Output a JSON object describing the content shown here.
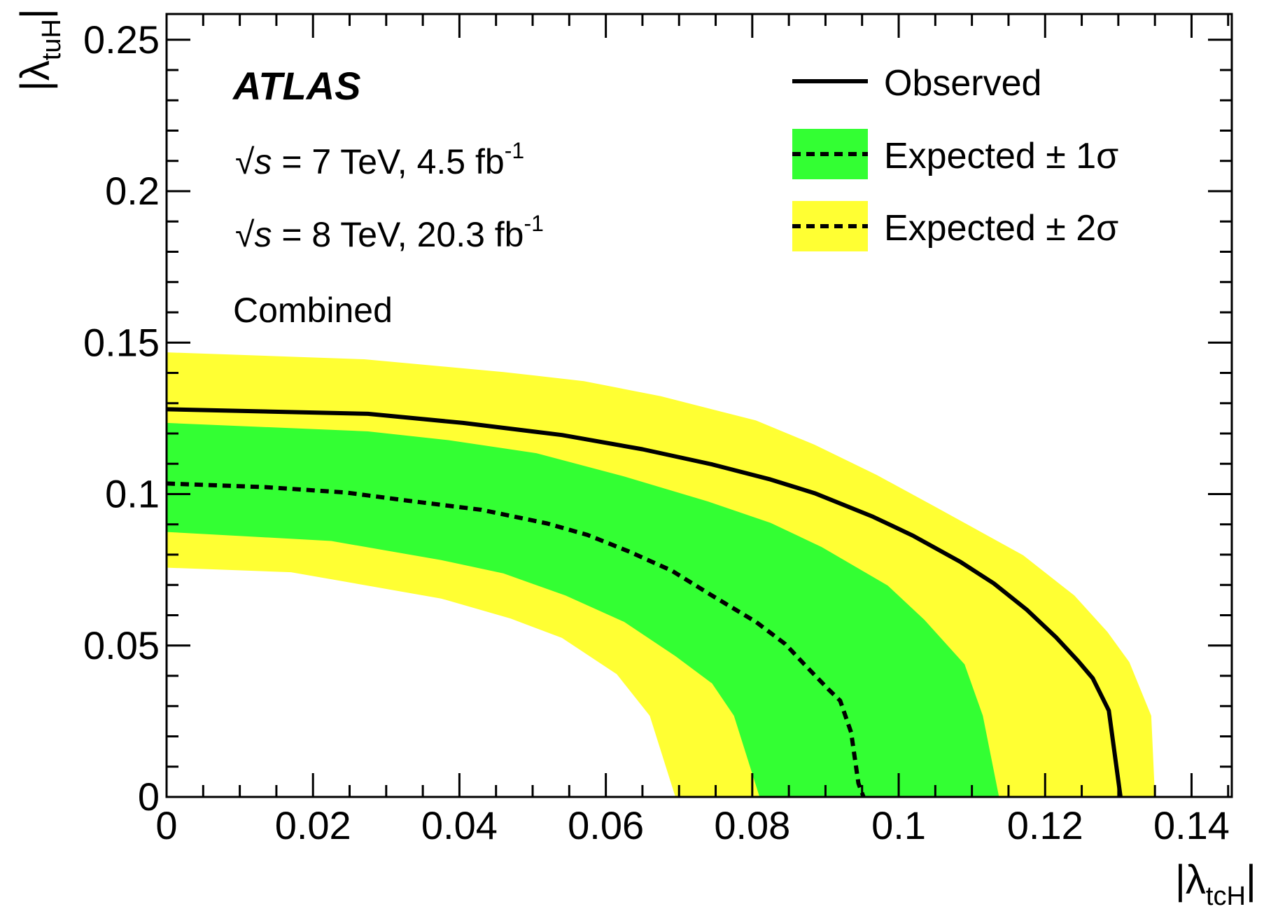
{
  "chart_data": {
    "type": "area",
    "title": "",
    "xlabel": {
      "main": "|λ",
      "sub": "tcH",
      "close": "|"
    },
    "ylabel": {
      "main": "|λ",
      "sub": "tuH",
      "close": "|"
    },
    "xlim": [
      0,
      0.1455
    ],
    "ylim": [
      0,
      0.2585
    ],
    "x_ticks": [
      0,
      0.02,
      0.04,
      0.06,
      0.08,
      0.1,
      0.12,
      0.14
    ],
    "x_tick_labels": [
      "0",
      "0.02",
      "0.04",
      "0.06",
      "0.08",
      "0.1",
      "0.12",
      "0.14"
    ],
    "x_minor_step": 0.005,
    "y_ticks": [
      0,
      0.05,
      0.1,
      0.15,
      0.2,
      0.25
    ],
    "y_tick_labels": [
      "0",
      "0.05",
      "0.1",
      "0.15",
      "0.2",
      "0.25"
    ],
    "y_minor_step": 0.01,
    "grid": false,
    "legend_position": "top-right",
    "series": [
      {
        "name": "Observed",
        "style": "solid",
        "points": [
          [
            0,
            0.128
          ],
          [
            0.0275,
            0.1265
          ],
          [
            0.0405,
            0.1235
          ],
          [
            0.054,
            0.1195
          ],
          [
            0.065,
            0.1148
          ],
          [
            0.0745,
            0.1098
          ],
          [
            0.0825,
            0.1048
          ],
          [
            0.0885,
            0.1003
          ],
          [
            0.0965,
            0.0925
          ],
          [
            0.102,
            0.0862
          ],
          [
            0.1085,
            0.0775
          ],
          [
            0.113,
            0.0705
          ],
          [
            0.1175,
            0.0618
          ],
          [
            0.1215,
            0.0527
          ],
          [
            0.1245,
            0.0449
          ],
          [
            0.1265,
            0.0392
          ],
          [
            0.1287,
            0.0285
          ],
          [
            0.1303,
            0
          ]
        ]
      },
      {
        "name": "Expected",
        "style": "dashed",
        "points": [
          [
            0,
            0.1035
          ],
          [
            0.0135,
            0.1023
          ],
          [
            0.0245,
            0.1005
          ],
          [
            0.033,
            0.0978
          ],
          [
            0.043,
            0.0948
          ],
          [
            0.052,
            0.0903
          ],
          [
            0.0575,
            0.0865
          ],
          [
            0.063,
            0.0812
          ],
          [
            0.069,
            0.0747
          ],
          [
            0.0745,
            0.0665
          ],
          [
            0.0805,
            0.0578
          ],
          [
            0.0845,
            0.0505
          ],
          [
            0.0875,
            0.0428
          ],
          [
            0.0905,
            0.0353
          ],
          [
            0.092,
            0.0318
          ],
          [
            0.0935,
            0.0213
          ],
          [
            0.0945,
            0.0045
          ],
          [
            0.0952,
            0
          ]
        ]
      }
    ],
    "bands": [
      {
        "name": "Expected ± 2σ",
        "color": "#ffff33",
        "upper": [
          [
            0,
            0.1468
          ],
          [
            0.027,
            0.1445
          ],
          [
            0.046,
            0.1403
          ],
          [
            0.057,
            0.1373
          ],
          [
            0.0675,
            0.1323
          ],
          [
            0.0805,
            0.1243
          ],
          [
            0.0885,
            0.1163
          ],
          [
            0.097,
            0.1063
          ],
          [
            0.105,
            0.0958
          ],
          [
            0.117,
            0.0798
          ],
          [
            0.124,
            0.0665
          ],
          [
            0.1285,
            0.0545
          ],
          [
            0.1315,
            0.0445
          ],
          [
            0.1345,
            0.0268
          ],
          [
            0.135,
            0
          ]
        ],
        "lower": [
          [
            0,
            0.0757
          ],
          [
            0.017,
            0.0742
          ],
          [
            0.0375,
            0.0655
          ],
          [
            0.047,
            0.0589
          ],
          [
            0.054,
            0.0525
          ],
          [
            0.0615,
            0.0405
          ],
          [
            0.066,
            0.0268
          ],
          [
            0.0695,
            0
          ]
        ]
      },
      {
        "name": "Expected ± 1σ",
        "color": "#33ff33",
        "upper": [
          [
            0,
            0.1235
          ],
          [
            0.0275,
            0.1207
          ],
          [
            0.0385,
            0.1178
          ],
          [
            0.0505,
            0.1135
          ],
          [
            0.0625,
            0.1058
          ],
          [
            0.074,
            0.0975
          ],
          [
            0.0825,
            0.0905
          ],
          [
            0.0895,
            0.0825
          ],
          [
            0.0985,
            0.0698
          ],
          [
            0.1035,
            0.0585
          ],
          [
            0.109,
            0.0438
          ],
          [
            0.1115,
            0.0268
          ],
          [
            0.1137,
            0
          ]
        ],
        "lower": [
          [
            0,
            0.0875
          ],
          [
            0.0225,
            0.0845
          ],
          [
            0.0375,
            0.0782
          ],
          [
            0.046,
            0.0738
          ],
          [
            0.0545,
            0.0665
          ],
          [
            0.0625,
            0.0578
          ],
          [
            0.0695,
            0.0465
          ],
          [
            0.0745,
            0.0375
          ],
          [
            0.0775,
            0.0268
          ],
          [
            0.081,
            0
          ]
        ]
      }
    ],
    "legend": [
      {
        "label": "Observed",
        "kind": "solid-line",
        "color": "#000000"
      },
      {
        "label": "Expected ± 1σ",
        "kind": "dashed-band",
        "color": "#33ff33"
      },
      {
        "label": "Expected ± 2σ",
        "kind": "dashed-band",
        "color": "#ffff33"
      }
    ],
    "annotations": {
      "experiment": "ATLAS",
      "energy_lines": [
        {
          "sqrt": "√",
          "s": "s",
          "rest": " = 7 TeV, 4.5 fb",
          "sup": "-1"
        },
        {
          "sqrt": "√",
          "s": "s",
          "rest": " = 8 TeV, 20.3 fb",
          "sup": "-1"
        }
      ],
      "mode": "Combined"
    }
  }
}
